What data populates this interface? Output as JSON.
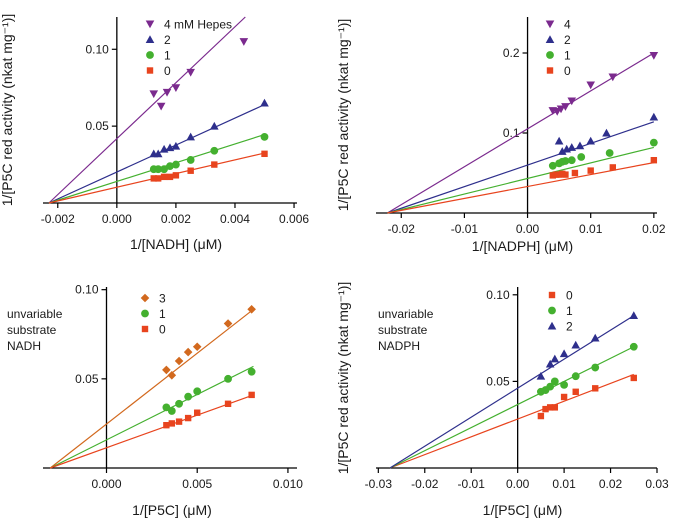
{
  "chart_data": [
    {
      "type": "scatter",
      "id": "nadh",
      "xlabel": "1/[NADH] (μM)",
      "ylabel": "1/[P5C red activity (nkat mg⁻¹)]",
      "xlim": [
        -0.0025,
        0.0061
      ],
      "ylim": [
        0,
        0.121
      ],
      "xticks": [
        -0.002,
        0.0,
        0.002,
        0.004,
        0.006
      ],
      "xtick_labels": [
        "-0.002",
        "0.000",
        "0.002",
        "0.004",
        "0.006"
      ],
      "yticks": [
        0.05,
        0.1
      ],
      "ytick_labels": [
        "0.05",
        "0.10"
      ],
      "legend_position": "top-left",
      "annotation": [],
      "series": [
        {
          "name": "4 mM Hepes",
          "marker": "triangle-down",
          "color": "#7b2a8e",
          "x": [
            0.00125,
            0.0015,
            0.0017,
            0.002,
            0.0025,
            0.0043
          ],
          "y": [
            0.071,
            0.063,
            0.072,
            0.075,
            0.085,
            0.105
          ],
          "fit": [
            [
              -0.0023,
              0
            ],
            [
              0.00435,
              0.121
            ]
          ]
        },
        {
          "name": "2",
          "marker": "triangle-up",
          "color": "#2e2f8c",
          "x": [
            0.00125,
            0.0014,
            0.0016,
            0.0018,
            0.002,
            0.0025,
            0.0033,
            0.005
          ],
          "y": [
            0.032,
            0.032,
            0.035,
            0.036,
            0.037,
            0.043,
            0.05,
            0.065
          ],
          "fit": [
            [
              -0.0023,
              0
            ],
            [
              0.005,
              0.064
            ]
          ]
        },
        {
          "name": "1",
          "marker": "circle",
          "color": "#44b02f",
          "x": [
            0.00125,
            0.0014,
            0.0016,
            0.0018,
            0.002,
            0.0025,
            0.0033,
            0.005
          ],
          "y": [
            0.022,
            0.022,
            0.022,
            0.024,
            0.025,
            0.028,
            0.034,
            0.043
          ],
          "fit": [
            [
              -0.0023,
              0
            ],
            [
              0.005,
              0.0445
            ]
          ]
        },
        {
          "name": "0",
          "marker": "square",
          "color": "#e8441e",
          "x": [
            0.00125,
            0.0014,
            0.0016,
            0.0018,
            0.002,
            0.0025,
            0.0033,
            0.005
          ],
          "y": [
            0.016,
            0.016,
            0.017,
            0.017,
            0.018,
            0.021,
            0.025,
            0.032
          ],
          "fit": [
            [
              -0.0023,
              0
            ],
            [
              0.005,
              0.0325
            ]
          ]
        }
      ]
    },
    {
      "type": "scatter",
      "id": "nadph",
      "xlabel": "1/[NADPH] (μM)",
      "ylabel": "1/[P5C red activity (nkat mg⁻¹)]",
      "xlim": [
        -0.024,
        0.0205
      ],
      "ylim": [
        0,
        0.245
      ],
      "xticks": [
        -0.02,
        -0.01,
        0.0,
        0.01,
        0.02
      ],
      "xtick_labels": [
        "-0.02",
        "-0.01",
        "0.00",
        "0.01",
        "0.02"
      ],
      "yticks": [
        0.1,
        0.2
      ],
      "ytick_labels": [
        "0.1",
        "0.2"
      ],
      "legend_position": "top-left",
      "annotation": [],
      "series": [
        {
          "name": "4",
          "marker": "triangle-down",
          "color": "#7b2a8e",
          "x": [
            0.004,
            0.0047,
            0.0053,
            0.006,
            0.007,
            0.01,
            0.0135,
            0.02
          ],
          "y": [
            0.128,
            0.127,
            0.13,
            0.133,
            0.14,
            0.16,
            0.17,
            0.197
          ],
          "fit": [
            [
              -0.0222,
              0
            ],
            [
              0.02,
              0.2
            ]
          ]
        },
        {
          "name": "2",
          "marker": "triangle-up",
          "color": "#2e2f8c",
          "x": [
            0.005,
            0.0055,
            0.0062,
            0.007,
            0.0083,
            0.01,
            0.0125,
            0.02
          ],
          "y": [
            0.09,
            0.077,
            0.08,
            0.082,
            0.084,
            0.09,
            0.1,
            0.12
          ],
          "fit": [
            [
              -0.0222,
              0
            ],
            [
              0.02,
              0.114
            ]
          ]
        },
        {
          "name": "1",
          "marker": "circle",
          "color": "#44b02f",
          "x": [
            0.004,
            0.005,
            0.0055,
            0.006,
            0.007,
            0.0085,
            0.013,
            0.02
          ],
          "y": [
            0.059,
            0.062,
            0.064,
            0.065,
            0.066,
            0.07,
            0.075,
            0.088
          ],
          "fit": [
            [
              -0.0222,
              0
            ],
            [
              0.02,
              0.082
            ]
          ]
        },
        {
          "name": "0",
          "marker": "square",
          "color": "#e8441e",
          "x": [
            0.004,
            0.0045,
            0.005,
            0.0055,
            0.006,
            0.0075,
            0.01,
            0.0135,
            0.02
          ],
          "y": [
            0.047,
            0.048,
            0.048,
            0.049,
            0.048,
            0.05,
            0.053,
            0.057,
            0.066
          ],
          "fit": [
            [
              -0.0222,
              0
            ],
            [
              0.02,
              0.063
            ]
          ]
        }
      ]
    },
    {
      "type": "scatter",
      "id": "p5c-nadh",
      "xlabel": "1/[P5C] (μM)",
      "ylabel": "",
      "xlim": [
        -0.0035,
        0.0105
      ],
      "ylim": [
        0,
        0.1015
      ],
      "xticks": [
        0.0,
        0.005,
        0.01
      ],
      "xtick_labels": [
        "0.000",
        "0.005",
        "0.010"
      ],
      "yticks": [
        0.05,
        0.1
      ],
      "ytick_labels": [
        "0.05",
        "0.10"
      ],
      "legend_position": "top-center",
      "annotation": [
        "unvariable",
        "substrate",
        "NADH"
      ],
      "series": [
        {
          "name": "3",
          "marker": "diamond",
          "color": "#d2691e",
          "x": [
            0.0033,
            0.0036,
            0.004,
            0.0045,
            0.005,
            0.0067,
            0.008
          ],
          "y": [
            0.055,
            0.052,
            0.06,
            0.065,
            0.068,
            0.081,
            0.089
          ],
          "fit": [
            [
              -0.0031,
              0
            ],
            [
              0.0081,
              0.089
            ]
          ]
        },
        {
          "name": "1",
          "marker": "circle",
          "color": "#44b02f",
          "x": [
            0.0033,
            0.0036,
            0.004,
            0.0045,
            0.005,
            0.0067,
            0.008
          ],
          "y": [
            0.034,
            0.032,
            0.036,
            0.04,
            0.043,
            0.05,
            0.054
          ],
          "fit": [
            [
              -0.0031,
              0
            ],
            [
              0.0081,
              0.057
            ]
          ]
        },
        {
          "name": "0",
          "marker": "square",
          "color": "#e8441e",
          "x": [
            0.0033,
            0.0036,
            0.004,
            0.0045,
            0.005,
            0.0067,
            0.008
          ],
          "y": [
            0.024,
            0.025,
            0.026,
            0.028,
            0.031,
            0.036,
            0.041
          ],
          "fit": [
            [
              -0.0031,
              0
            ],
            [
              0.0081,
              0.041
            ]
          ]
        }
      ]
    },
    {
      "type": "scatter",
      "id": "p5c-nadph",
      "xlabel": "1/[P5C] (μM)",
      "ylabel": "1/[P5C red activity (nkat mg⁻¹)]",
      "xlim": [
        -0.0305,
        0.03
      ],
      "ylim": [
        0,
        0.1045
      ],
      "xticks": [
        -0.03,
        -0.02,
        -0.01,
        0.0,
        0.01,
        0.02,
        0.03
      ],
      "xtick_labels": [
        "-0.03",
        "-0.02",
        "-0.01",
        "0.00",
        "0.01",
        "0.02",
        "0.03"
      ],
      "yticks": [
        0.05,
        0.1
      ],
      "ytick_labels": [
        "0.05",
        "0.10"
      ],
      "legend_position": "top-left",
      "annotation": [
        "unvariable",
        "substrate",
        "NADPH"
      ],
      "series": [
        {
          "name": "0",
          "marker": "square",
          "color": "#e8441e",
          "x": [
            0.005,
            0.006,
            0.007,
            0.008,
            0.01,
            0.0125,
            0.0167,
            0.025
          ],
          "y": [
            0.03,
            0.034,
            0.035,
            0.035,
            0.041,
            0.044,
            0.046,
            0.052
          ],
          "fit": [
            [
              -0.0275,
              0
            ],
            [
              0.025,
              0.054
            ]
          ]
        },
        {
          "name": "1",
          "marker": "circle",
          "color": "#44b02f",
          "x": [
            0.005,
            0.006,
            0.007,
            0.008,
            0.01,
            0.0125,
            0.0167,
            0.025
          ],
          "y": [
            0.044,
            0.045,
            0.047,
            0.05,
            0.048,
            0.053,
            0.058,
            0.07
          ],
          "fit": [
            [
              -0.0275,
              0
            ],
            [
              0.025,
              0.07
            ]
          ]
        },
        {
          "name": "2",
          "marker": "triangle-up",
          "color": "#2e2f8c",
          "x": [
            0.005,
            0.007,
            0.008,
            0.01,
            0.0125,
            0.0167,
            0.025
          ],
          "y": [
            0.053,
            0.06,
            0.063,
            0.066,
            0.071,
            0.075,
            0.088
          ],
          "fit": [
            [
              -0.0275,
              0
            ],
            [
              0.025,
              0.088
            ]
          ]
        }
      ]
    }
  ]
}
